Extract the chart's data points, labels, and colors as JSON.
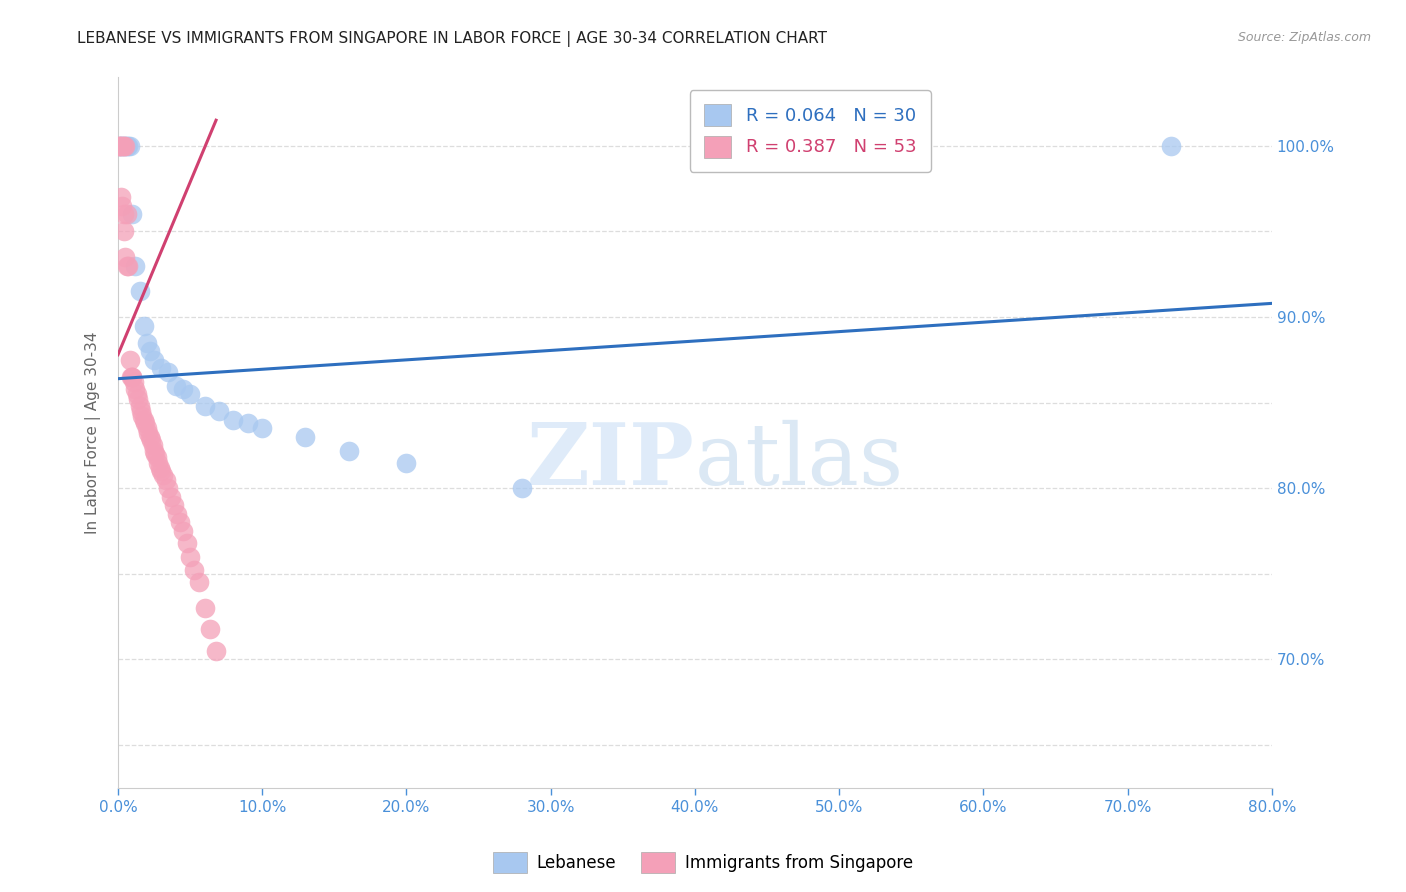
{
  "title": "LEBANESE VS IMMIGRANTS FROM SINGAPORE IN LABOR FORCE | AGE 30-34 CORRELATION CHART",
  "source": "Source: ZipAtlas.com",
  "ylabel": "In Labor Force | Age 30-34",
  "xlim": [
    0.0,
    0.8
  ],
  "ylim": [
    0.625,
    1.04
  ],
  "yticks": [
    0.7,
    0.8,
    0.9,
    1.0
  ],
  "xticks": [
    0.0,
    0.1,
    0.2,
    0.3,
    0.4,
    0.5,
    0.6,
    0.7,
    0.8
  ],
  "blue_color": "#A8C8F0",
  "pink_color": "#F4A0B8",
  "blue_line_color": "#2E6FBF",
  "pink_line_color": "#D04070",
  "R_blue": 0.064,
  "N_blue": 30,
  "R_pink": 0.387,
  "N_pink": 53,
  "blue_scatter_x": [
    0.001,
    0.002,
    0.003,
    0.004,
    0.005,
    0.006,
    0.007,
    0.008,
    0.01,
    0.012,
    0.015,
    0.018,
    0.02,
    0.022,
    0.025,
    0.03,
    0.035,
    0.04,
    0.045,
    0.05,
    0.06,
    0.07,
    0.08,
    0.09,
    0.1,
    0.13,
    0.16,
    0.2,
    0.28,
    0.73
  ],
  "blue_scatter_y": [
    1.0,
    1.0,
    1.0,
    1.0,
    1.0,
    1.0,
    1.0,
    1.0,
    0.96,
    0.93,
    0.915,
    0.895,
    0.885,
    0.88,
    0.875,
    0.87,
    0.868,
    0.86,
    0.858,
    0.855,
    0.848,
    0.845,
    0.84,
    0.838,
    0.835,
    0.83,
    0.822,
    0.815,
    0.8,
    1.0
  ],
  "pink_scatter_x": [
    0.001,
    0.001,
    0.002,
    0.002,
    0.003,
    0.003,
    0.004,
    0.004,
    0.004,
    0.005,
    0.005,
    0.006,
    0.006,
    0.007,
    0.008,
    0.009,
    0.01,
    0.01,
    0.011,
    0.012,
    0.013,
    0.014,
    0.015,
    0.016,
    0.017,
    0.018,
    0.019,
    0.02,
    0.021,
    0.022,
    0.023,
    0.024,
    0.025,
    0.026,
    0.027,
    0.028,
    0.029,
    0.03,
    0.031,
    0.033,
    0.035,
    0.037,
    0.039,
    0.041,
    0.043,
    0.045,
    0.048,
    0.05,
    0.053,
    0.056,
    0.06,
    0.064,
    0.068
  ],
  "pink_scatter_y": [
    1.0,
    1.0,
    1.0,
    0.97,
    1.0,
    0.965,
    1.0,
    0.96,
    0.95,
    1.0,
    0.935,
    0.96,
    0.93,
    0.93,
    0.875,
    0.865,
    0.865,
    0.865,
    0.862,
    0.858,
    0.855,
    0.852,
    0.848,
    0.845,
    0.842,
    0.84,
    0.838,
    0.835,
    0.832,
    0.83,
    0.828,
    0.825,
    0.822,
    0.82,
    0.818,
    0.815,
    0.812,
    0.81,
    0.808,
    0.805,
    0.8,
    0.795,
    0.79,
    0.785,
    0.78,
    0.775,
    0.768,
    0.76,
    0.752,
    0.745,
    0.73,
    0.718,
    0.705
  ],
  "blue_trend_x": [
    0.0,
    0.8
  ],
  "blue_trend_y": [
    0.864,
    0.908
  ],
  "pink_trend_x": [
    0.0,
    0.068
  ],
  "pink_trend_y": [
    0.878,
    1.015
  ],
  "watermark_zip": "ZIP",
  "watermark_atlas": "atlas",
  "background_color": "#FFFFFF",
  "grid_color": "#DDDDDD",
  "tick_color": "#4A90D9",
  "axis_color": "#CCCCCC"
}
